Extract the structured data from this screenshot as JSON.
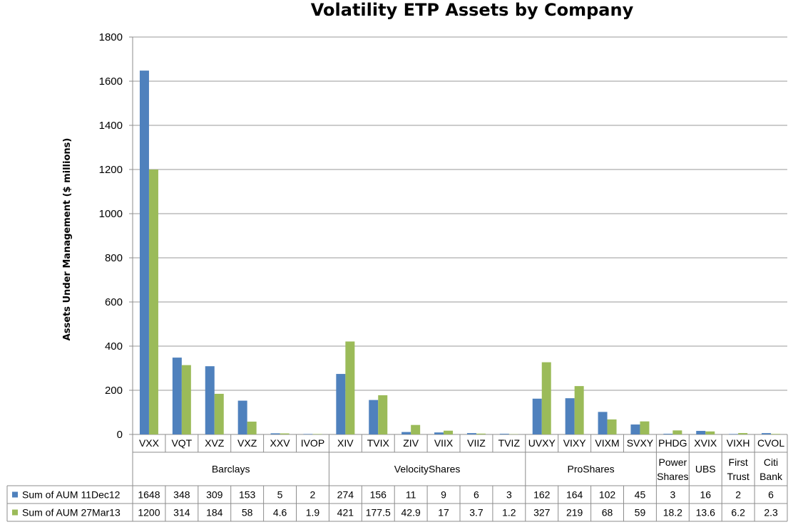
{
  "chart_data": {
    "type": "bar",
    "title": "Volatility ETP Assets by Company",
    "ylabel": "Assets Under Management ($ millions)",
    "ylim": [
      0,
      1800
    ],
    "yticks": [
      0,
      200,
      400,
      600,
      800,
      1000,
      1200,
      1400,
      1600,
      1800
    ],
    "grid": true,
    "legend": "data-table-left",
    "categories": [
      "VXX",
      "VQT",
      "XVZ",
      "VXZ",
      "XXV",
      "IVOP",
      "XIV",
      "TVIX",
      "ZIV",
      "VIIX",
      "VIIZ",
      "TVIZ",
      "UVXY",
      "VIXY",
      "VIXM",
      "SVXY",
      "PHDG",
      "XVIX",
      "VIXH",
      "CVOL"
    ],
    "groups": [
      {
        "label": "Barclays",
        "start": 0,
        "count": 6
      },
      {
        "label": "VelocityShares",
        "start": 6,
        "count": 6
      },
      {
        "label": "ProShares",
        "start": 12,
        "count": 4
      },
      {
        "label": "Power Shares",
        "start": 16,
        "count": 1
      },
      {
        "label": "UBS",
        "start": 17,
        "count": 1
      },
      {
        "label": "First Trust",
        "start": 18,
        "count": 1
      },
      {
        "label": "Citi Bank",
        "start": 19,
        "count": 1
      }
    ],
    "series": [
      {
        "name": "Sum of AUM 11Dec12",
        "color": "#4f81bd",
        "values": [
          1648,
          348,
          309,
          153,
          5,
          2,
          274,
          156,
          11,
          9,
          6,
          3,
          162,
          164,
          102,
          45,
          3,
          16,
          2,
          6
        ],
        "labels": [
          "1648",
          "348",
          "309",
          "153",
          "5",
          "2",
          "274",
          "156",
          "11",
          "9",
          "6",
          "3",
          "162",
          "164",
          "102",
          "45",
          "3",
          "16",
          "2",
          "6"
        ]
      },
      {
        "name": "Sum of AUM 27Mar13",
        "color": "#9bbb59",
        "values": [
          1200,
          314,
          184,
          58,
          4.6,
          1.9,
          421,
          177.5,
          42.9,
          17,
          3.7,
          1.2,
          327,
          219,
          68,
          59,
          18.2,
          13.6,
          6.2,
          2.3
        ],
        "labels": [
          "1200",
          "314",
          "184",
          "58",
          "4.6",
          "1.9",
          "421",
          "177.5",
          "42.9",
          "17",
          "3.7",
          "1.2",
          "327",
          "219",
          "68",
          "59",
          "18.2",
          "13.6",
          "6.2",
          "2.3"
        ]
      }
    ]
  }
}
